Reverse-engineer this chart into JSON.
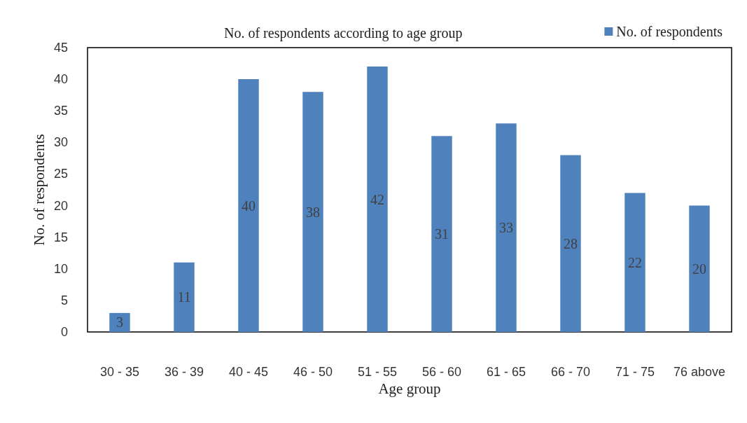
{
  "chart_data": {
    "type": "bar",
    "title": "No. of respondents according to age group",
    "xlabel": "Age group",
    "ylabel": "No. of respondents",
    "categories": [
      "30 - 35",
      "36 - 39",
      "40 - 45",
      "46 - 50",
      "51 - 55",
      "56 - 60",
      "61 - 65",
      "66 - 70",
      "71 - 75",
      "76 above"
    ],
    "series": [
      {
        "name": "No. of respondents",
        "color": "#4f81bd",
        "values": [
          3,
          11,
          40,
          38,
          42,
          31,
          33,
          28,
          22,
          20
        ]
      }
    ],
    "ylim": [
      0,
      45
    ],
    "yticks": [
      0,
      5,
      10,
      15,
      20,
      25,
      30,
      35,
      40,
      45
    ],
    "grid": false,
    "legend": "top right",
    "data_labels": true
  }
}
